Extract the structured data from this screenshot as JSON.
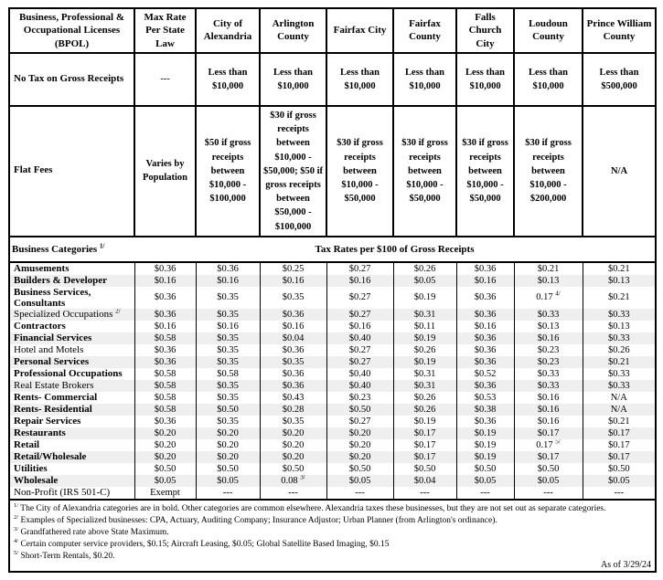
{
  "colors": {
    "border": "#000000",
    "row_stripe": "#efefef",
    "background": "#ffffff"
  },
  "table": {
    "corner_header": "Business, Professional & Occupational Licenses (BPOL)",
    "columns": [
      "Max Rate Per State Law",
      "City of Alexandria",
      "Arlington County",
      "Fairfax City",
      "Fairfax County",
      "Falls Church City",
      "Loudoun County",
      "Prince William County"
    ],
    "no_tax": {
      "label": "No Tax on Gross Receipts",
      "values": [
        "---",
        "Less than $10,000",
        "Less than $10,000",
        "Less than $10,000",
        "Less than $10,000",
        "Less than $10,000",
        "Less than $10,000",
        "Less than $500,000"
      ]
    },
    "flat_fees": {
      "label": "Flat Fees",
      "values": [
        "Varies by Population",
        "$50 if gross receipts between $10,000 - $100,000",
        "$30 if gross receipts between $10,000 - $50,000;  $50 if gross receipts between $50,000 - $100,000",
        "$30 if gross receipts between $10,000 - $50,000",
        "$30 if gross receipts between $10,000 - $50,000",
        "$30 if gross receipts between $10,000 - $50,000",
        "$30 if gross receipts between $10,000 - $200,000",
        "N/A"
      ]
    },
    "categories_header": {
      "label": "Business Categories ^1/",
      "span_label": "Tax Rates per $100 of Gross Receipts"
    },
    "category_rows": [
      {
        "label": "Amusements",
        "bold": true,
        "values": [
          "$0.36",
          "$0.36",
          "$0.25",
          "$0.27",
          "$0.26",
          "$0.36",
          "$0.21",
          "$0.21"
        ]
      },
      {
        "label": "Builders & Developer",
        "bold": true,
        "values": [
          "$0.16",
          "$0.16",
          "$0.16",
          "$0.16",
          "$0.05",
          "$0.16",
          "$0.13",
          "$0.13"
        ]
      },
      {
        "label": "Business Services, Consultants",
        "bold": true,
        "values": [
          "$0.36",
          "$0.35",
          "$0.35",
          "$0.27",
          "$0.19",
          "$0.36",
          "0.17 ^4/",
          "$0.21"
        ]
      },
      {
        "label": "Specialized Occupations ^2/",
        "bold": false,
        "values": [
          "$0.36",
          "$0.35",
          "$0.36",
          "$0.27",
          "$0.31",
          "$0.36",
          "$0.33",
          "$0.33"
        ]
      },
      {
        "label": "Contractors",
        "bold": true,
        "values": [
          "$0.16",
          "$0.16",
          "$0.16",
          "$0.16",
          "$0.11",
          "$0.16",
          "$0.13",
          "$0.13"
        ]
      },
      {
        "label": "Financial Services",
        "bold": true,
        "values": [
          "$0.58",
          "$0.35",
          "$0.04",
          "$0.40",
          "$0.19",
          "$0.36",
          "$0.16",
          "$0.33"
        ]
      },
      {
        "label": "Hotel and Motels",
        "bold": false,
        "values": [
          "$0.36",
          "$0.35",
          "$0.36",
          "$0.27",
          "$0.26",
          "$0.36",
          "$0.23",
          "$0.26"
        ]
      },
      {
        "label": "Personal Services",
        "bold": true,
        "values": [
          "$0.36",
          "$0.35",
          "$0.35",
          "$0.27",
          "$0.19",
          "$0.36",
          "$0.23",
          "$0.21"
        ]
      },
      {
        "label": "Professional Occupations",
        "bold": true,
        "values": [
          "$0.58",
          "$0.58",
          "$0.36",
          "$0.40",
          "$0.31",
          "$0.52",
          "$0.33",
          "$0.33"
        ]
      },
      {
        "label": "Real Estate Brokers",
        "bold": false,
        "values": [
          "$0.58",
          "$0.35",
          "$0.36",
          "$0.40",
          "$0.31",
          "$0.36",
          "$0.33",
          "$0.33"
        ]
      },
      {
        "label": "Rents- Commercial",
        "bold": true,
        "values": [
          "$0.58",
          "$0.35",
          "$0.43",
          "$0.23",
          "$0.26",
          "$0.53",
          "$0.16",
          "N/A"
        ]
      },
      {
        "label": "Rents- Residential",
        "bold": true,
        "values": [
          "$0.58",
          "$0.50",
          "$0.28",
          "$0.50",
          "$0.26",
          "$0.38",
          "$0.16",
          "N/A"
        ]
      },
      {
        "label": "Repair Services",
        "bold": true,
        "values": [
          "$0.36",
          "$0.35",
          "$0.35",
          "$0.27",
          "$0.19",
          "$0.36",
          "$0.16",
          "$0.21"
        ]
      },
      {
        "label": "Restaurants",
        "bold": true,
        "values": [
          "$0.20",
          "$0.20",
          "$0.20",
          "$0.20",
          "$0.17",
          "$0.19",
          "$0.17",
          "$0.17"
        ]
      },
      {
        "label": "Retail",
        "bold": true,
        "values": [
          "$0.20",
          "$0.20",
          "$0.20",
          "$0.20",
          "$0.17",
          "$0.19",
          "0.17 ^5/",
          "$0.17"
        ]
      },
      {
        "label": "Retail/Wholesale",
        "bold": true,
        "values": [
          "$0.20",
          "$0.20",
          "$0.20",
          "$0.20",
          "$0.17",
          "$0.19",
          "$0.17",
          "$0.17"
        ]
      },
      {
        "label": "Utilities",
        "bold": true,
        "values": [
          "$0.50",
          "$0.50",
          "$0.50",
          "$0.50",
          "$0.50",
          "$0.50",
          "$0.50",
          "$0.50"
        ]
      },
      {
        "label": "Wholesale",
        "bold": true,
        "values": [
          "$0.05",
          "$0.05",
          "0.08 ^3/",
          "$0.05",
          "$0.04",
          "$0.05",
          "$0.05",
          "$0.05"
        ]
      },
      {
        "label": "Non-Profit (IRS 501-C)",
        "bold": false,
        "values": [
          "Exempt",
          "---",
          "---",
          "---",
          "---",
          "---",
          "---",
          "---"
        ]
      }
    ],
    "footnotes": [
      {
        "marker": "1/",
        "text": "The City of Alexandria categories are in bold. Other categories are common elsewhere.  Alexandria taxes these businesses, but they are not set out as separate categories."
      },
      {
        "marker": "2/",
        "text": "Examples of Specialized businesses:  CPA, Actuary, Auditing Company; Insurance Adjustor; Urban Planner (from Arlington's ordinance)."
      },
      {
        "marker": "3/",
        "text": "Grandfathered rate above State Maximum."
      },
      {
        "marker": "4/",
        "text": "Certain computer service providers, $0.15; Aircraft Leasing, $0.05;  Global Satellite Based Imaging, $0.15"
      },
      {
        "marker": "5/",
        "text": "Short-Term Rentals, $0.20."
      }
    ],
    "as_of": "As of 3/29/24"
  }
}
